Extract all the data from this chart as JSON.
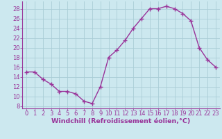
{
  "x": [
    0,
    1,
    2,
    3,
    4,
    5,
    6,
    7,
    8,
    9,
    10,
    11,
    12,
    13,
    14,
    15,
    16,
    17,
    18,
    19,
    20,
    21,
    22,
    23
  ],
  "y": [
    15,
    15,
    13.5,
    12.5,
    11,
    11,
    10.5,
    9,
    8.5,
    12,
    18,
    19.5,
    21.5,
    24,
    26,
    28,
    28,
    28.5,
    28,
    27,
    25.5,
    20,
    17.5,
    16
  ],
  "line_color": "#993399",
  "marker": "+",
  "bg_color": "#cce8ef",
  "grid_color": "#aacdd6",
  "xlabel": "Windchill (Refroidissement éolien,°C)",
  "xlim": [
    -0.5,
    23.5
  ],
  "ylim": [
    7.5,
    29.5
  ],
  "tick_color": "#993399",
  "label_color": "#993399",
  "xlabel_fontsize": 6.8,
  "tick_fontsize": 6.0,
  "linewidth": 1.0,
  "markersize": 4.5
}
